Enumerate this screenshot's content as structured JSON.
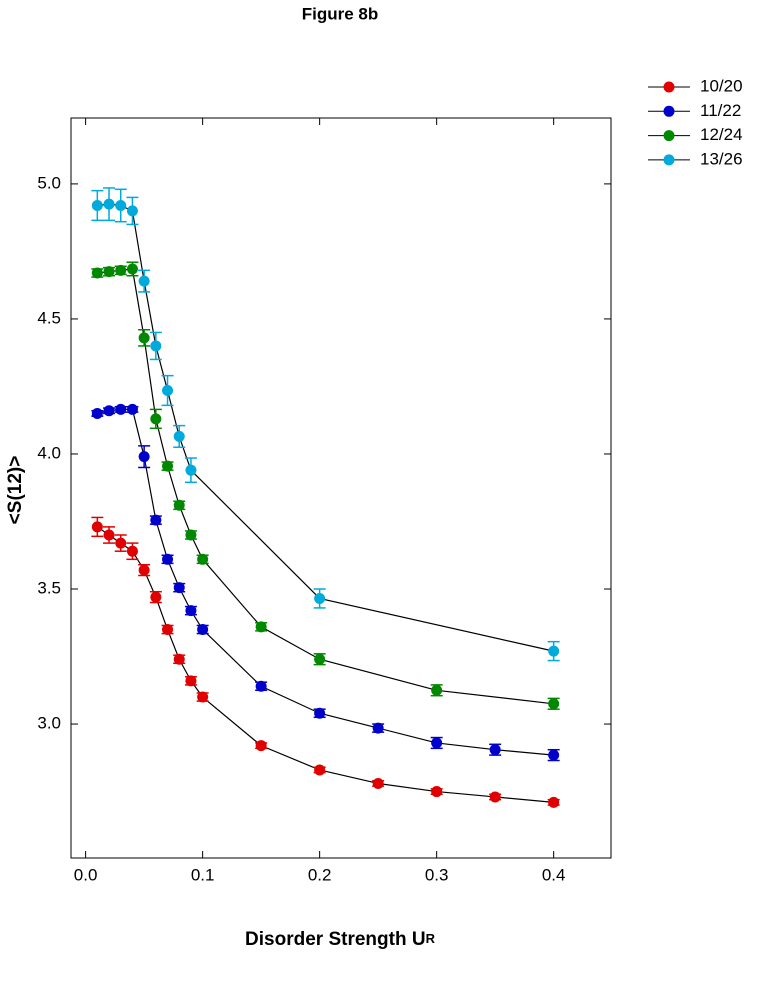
{
  "chart_data": {
    "type": "line",
    "title": "Figure 8b",
    "x_label": {
      "text": "Disorder Strength U",
      "subscript": "R"
    },
    "y_label": "<S(12)>",
    "xlim": [
      -0.0125,
      0.449
    ],
    "ylim": [
      2.504,
      5.244
    ],
    "xticks": [
      {
        "value": 0,
        "label": "0.0"
      },
      0.1,
      0.2,
      0.3,
      0.4
    ],
    "yticks": [
      {
        "value": 3,
        "label": "3.0"
      },
      3.5,
      {
        "value": 4,
        "label": "4.0"
      },
      4.5,
      {
        "value": 5,
        "label": "5.0"
      }
    ],
    "line_color": "#000000",
    "legend": "outside-top-right",
    "series": [
      {
        "name": "10/20",
        "color": "#e00000",
        "x": [
          0.01,
          0.02,
          0.03,
          0.04,
          0.05,
          0.06,
          0.07,
          0.08,
          0.09,
          0.1,
          0.15,
          0.2,
          0.25,
          0.3,
          0.35,
          0.4
        ],
        "values": [
          3.73,
          3.7,
          3.67,
          3.64,
          3.57,
          3.47,
          3.35,
          3.24,
          3.16,
          3.1,
          2.92,
          2.83,
          2.78,
          2.75,
          2.73,
          2.71
        ],
        "errors": [
          0.035,
          0.03,
          0.03,
          0.03,
          0.02,
          0.02,
          0.015,
          0.015,
          0.015,
          0.015,
          0.01,
          0.01,
          0.01,
          0.01,
          0.01,
          0.01
        ]
      },
      {
        "name": "11/22",
        "color": "#0000cc",
        "x": [
          0.01,
          0.02,
          0.03,
          0.04,
          0.05,
          0.06,
          0.07,
          0.08,
          0.09,
          0.1,
          0.15,
          0.2,
          0.25,
          0.3,
          0.35,
          0.4
        ],
        "values": [
          4.15,
          4.16,
          4.165,
          4.165,
          3.99,
          3.755,
          3.61,
          3.505,
          3.42,
          3.35,
          3.14,
          3.04,
          2.985,
          2.93,
          2.905,
          2.885
        ],
        "errors": [
          0.01,
          0.01,
          0.01,
          0.01,
          0.04,
          0.015,
          0.015,
          0.015,
          0.015,
          0.015,
          0.015,
          0.015,
          0.015,
          0.02,
          0.02,
          0.02
        ]
      },
      {
        "name": "12/24",
        "color": "#008800",
        "x": [
          0.01,
          0.02,
          0.03,
          0.04,
          0.05,
          0.06,
          0.07,
          0.08,
          0.09,
          0.1,
          0.15,
          0.2,
          0.3,
          0.4
        ],
        "values": [
          4.67,
          4.675,
          4.68,
          4.685,
          4.43,
          4.13,
          3.955,
          3.81,
          3.7,
          3.61,
          3.36,
          3.24,
          3.125,
          3.075
        ],
        "errors": [
          0.015,
          0.015,
          0.015,
          0.025,
          0.03,
          0.035,
          0.015,
          0.015,
          0.015,
          0.015,
          0.015,
          0.02,
          0.02,
          0.02
        ]
      },
      {
        "name": "13/26",
        "color": "#00aadd",
        "x": [
          0.01,
          0.02,
          0.03,
          0.04,
          0.05,
          0.06,
          0.07,
          0.08,
          0.09,
          0.2,
          0.4
        ],
        "values": [
          4.92,
          4.925,
          4.92,
          4.9,
          4.64,
          4.4,
          4.235,
          4.065,
          3.94,
          3.465,
          3.27
        ],
        "errors": [
          0.055,
          0.06,
          0.06,
          0.05,
          0.04,
          0.05,
          0.055,
          0.04,
          0.045,
          0.035,
          0.035
        ]
      }
    ]
  }
}
